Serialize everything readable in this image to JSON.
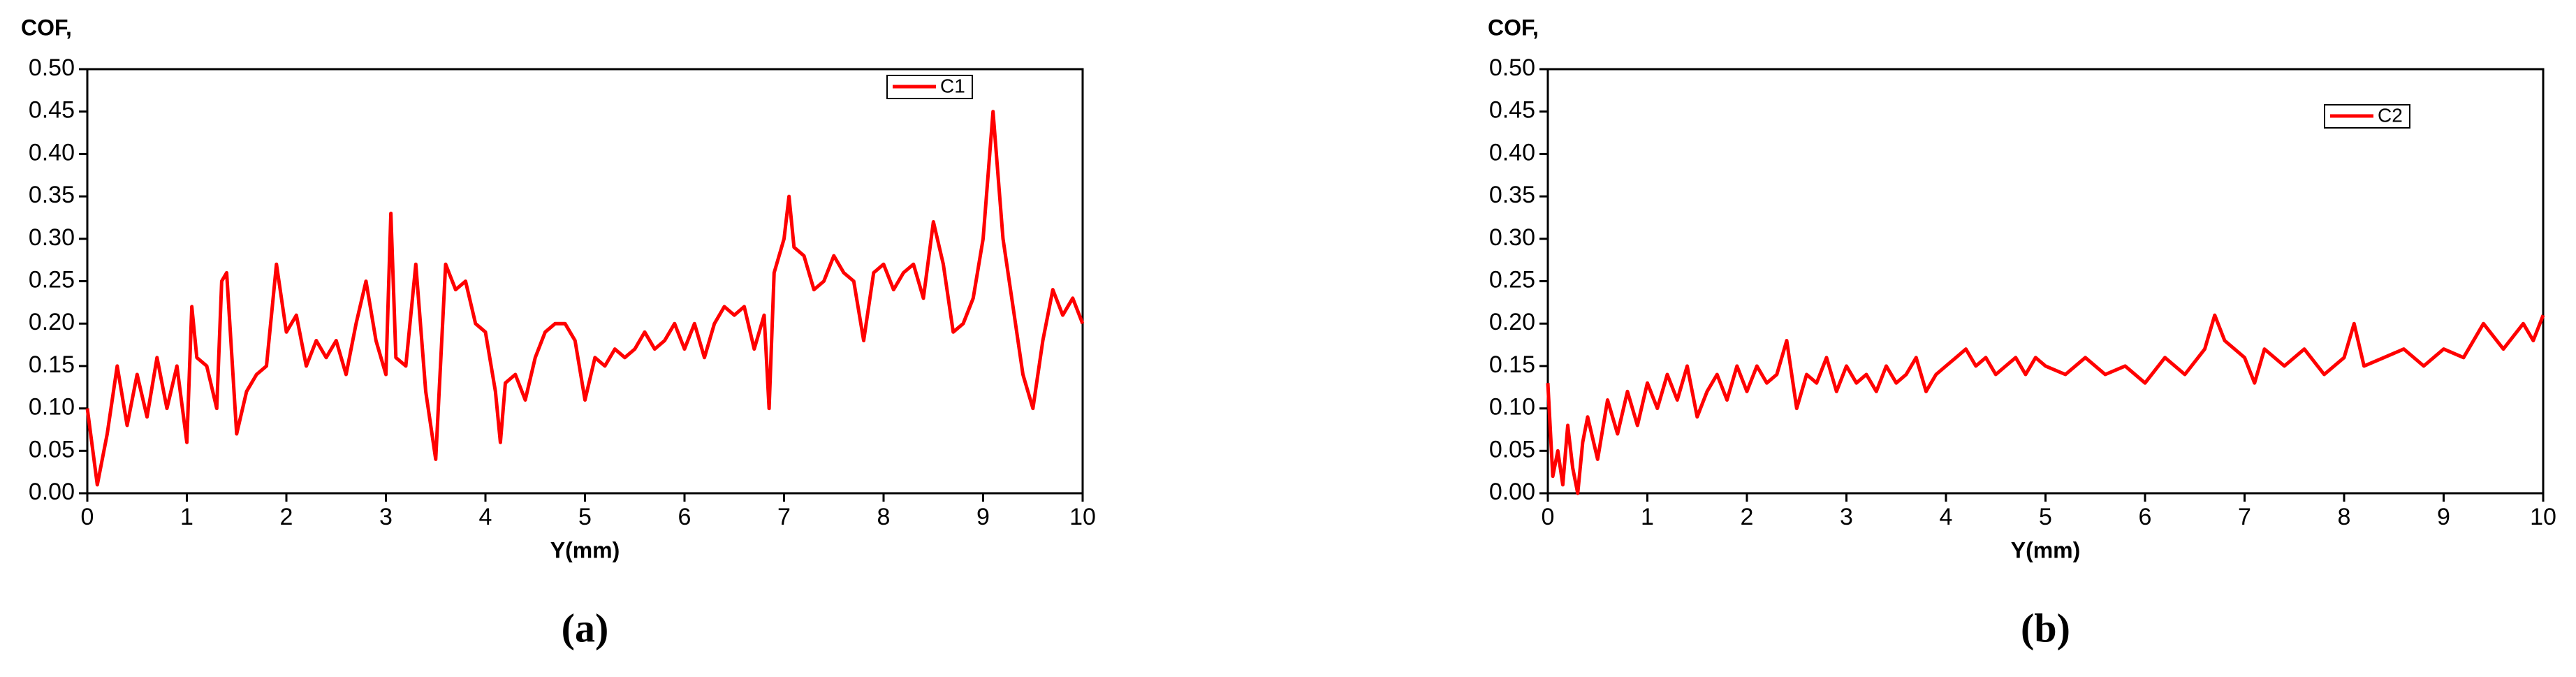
{
  "chart_data": [
    {
      "type": "line",
      "ylabel": "COF,",
      "xlabel": "Y(mm)",
      "caption": "(a)",
      "x": [
        0,
        0.1,
        0.2,
        0.3,
        0.4,
        0.5,
        0.6,
        0.7,
        0.8,
        0.9,
        1.0,
        1.05,
        1.1,
        1.2,
        1.3,
        1.35,
        1.4,
        1.5,
        1.6,
        1.7,
        1.8,
        1.9,
        2.0,
        2.1,
        2.2,
        2.3,
        2.4,
        2.5,
        2.6,
        2.7,
        2.8,
        2.9,
        3.0,
        3.05,
        3.1,
        3.2,
        3.3,
        3.4,
        3.5,
        3.6,
        3.7,
        3.8,
        3.9,
        4.0,
        4.1,
        4.15,
        4.2,
        4.3,
        4.4,
        4.5,
        4.6,
        4.7,
        4.8,
        4.9,
        5.0,
        5.1,
        5.2,
        5.3,
        5.4,
        5.5,
        5.6,
        5.7,
        5.8,
        5.9,
        6.0,
        6.1,
        6.2,
        6.3,
        6.4,
        6.5,
        6.6,
        6.7,
        6.8,
        6.85,
        6.9,
        7.0,
        7.05,
        7.1,
        7.2,
        7.3,
        7.4,
        7.5,
        7.6,
        7.7,
        7.8,
        7.9,
        8.0,
        8.1,
        8.2,
        8.3,
        8.4,
        8.5,
        8.6,
        8.7,
        8.8,
        8.9,
        9.0,
        9.1,
        9.2,
        9.3,
        9.4,
        9.5,
        9.6,
        9.7,
        9.8,
        9.9,
        10.0
      ],
      "series": [
        {
          "name": "C1",
          "color": "#ff0000",
          "values": [
            0.1,
            0.01,
            0.07,
            0.15,
            0.08,
            0.14,
            0.09,
            0.16,
            0.1,
            0.15,
            0.06,
            0.22,
            0.16,
            0.15,
            0.1,
            0.25,
            0.26,
            0.07,
            0.12,
            0.14,
            0.15,
            0.27,
            0.19,
            0.21,
            0.15,
            0.18,
            0.16,
            0.18,
            0.14,
            0.2,
            0.25,
            0.18,
            0.14,
            0.33,
            0.16,
            0.15,
            0.27,
            0.12,
            0.04,
            0.27,
            0.24,
            0.25,
            0.2,
            0.19,
            0.12,
            0.06,
            0.13,
            0.14,
            0.11,
            0.16,
            0.19,
            0.2,
            0.2,
            0.18,
            0.11,
            0.16,
            0.15,
            0.17,
            0.16,
            0.17,
            0.19,
            0.17,
            0.18,
            0.2,
            0.17,
            0.2,
            0.16,
            0.2,
            0.22,
            0.21,
            0.22,
            0.17,
            0.21,
            0.1,
            0.26,
            0.3,
            0.35,
            0.29,
            0.28,
            0.24,
            0.25,
            0.28,
            0.26,
            0.25,
            0.18,
            0.26,
            0.27,
            0.24,
            0.26,
            0.27,
            0.23,
            0.32,
            0.27,
            0.19,
            0.2,
            0.23,
            0.3,
            0.45,
            0.3,
            0.22,
            0.14,
            0.1,
            0.18,
            0.24,
            0.21,
            0.23,
            0.2
          ]
        }
      ],
      "xlim": [
        0,
        10
      ],
      "xticks": [
        0,
        1,
        2,
        3,
        4,
        5,
        6,
        7,
        8,
        9,
        10
      ],
      "ylim": [
        0,
        0.5
      ],
      "yticks": [
        {
          "value": 0,
          "label": "0.00"
        },
        {
          "value": 0.05,
          "label": "0.05"
        },
        {
          "value": 0.1,
          "label": "0.10"
        },
        {
          "value": 0.15,
          "label": "0.15"
        },
        {
          "value": 0.2,
          "label": "0.20"
        },
        {
          "value": 0.25,
          "label": "0.25"
        },
        {
          "value": 0.3,
          "label": "0.30"
        },
        {
          "value": 0.35,
          "label": "0.35"
        },
        {
          "value": 0.4,
          "label": "0.40"
        },
        {
          "value": 0.45,
          "label": "0.45"
        },
        {
          "value": 0.5,
          "label": "0.50"
        }
      ]
    },
    {
      "type": "line",
      "ylabel": "COF,",
      "xlabel": "Y(mm)",
      "caption": "(b)",
      "x": [
        0,
        0.05,
        0.1,
        0.15,
        0.2,
        0.25,
        0.3,
        0.35,
        0.4,
        0.5,
        0.6,
        0.7,
        0.8,
        0.9,
        1.0,
        1.1,
        1.2,
        1.3,
        1.4,
        1.5,
        1.6,
        1.7,
        1.8,
        1.9,
        2.0,
        2.1,
        2.2,
        2.3,
        2.4,
        2.5,
        2.6,
        2.7,
        2.8,
        2.9,
        3.0,
        3.1,
        3.2,
        3.3,
        3.4,
        3.5,
        3.6,
        3.7,
        3.8,
        3.9,
        4.0,
        4.1,
        4.2,
        4.3,
        4.4,
        4.5,
        4.6,
        4.7,
        4.8,
        4.9,
        5.0,
        5.2,
        5.4,
        5.6,
        5.8,
        6.0,
        6.2,
        6.4,
        6.6,
        6.7,
        6.8,
        7.0,
        7.1,
        7.2,
        7.4,
        7.6,
        7.8,
        8.0,
        8.1,
        8.2,
        8.4,
        8.6,
        8.8,
        9.0,
        9.2,
        9.4,
        9.6,
        9.8,
        9.9,
        10.0
      ],
      "series": [
        {
          "name": "C2",
          "color": "#ff0000",
          "values": [
            0.13,
            0.02,
            0.05,
            0.01,
            0.08,
            0.03,
            0.0,
            0.06,
            0.09,
            0.04,
            0.11,
            0.07,
            0.12,
            0.08,
            0.13,
            0.1,
            0.14,
            0.11,
            0.15,
            0.09,
            0.12,
            0.14,
            0.11,
            0.15,
            0.12,
            0.15,
            0.13,
            0.14,
            0.18,
            0.1,
            0.14,
            0.13,
            0.16,
            0.12,
            0.15,
            0.13,
            0.14,
            0.12,
            0.15,
            0.13,
            0.14,
            0.16,
            0.12,
            0.14,
            0.15,
            0.16,
            0.17,
            0.15,
            0.16,
            0.14,
            0.15,
            0.16,
            0.14,
            0.16,
            0.15,
            0.14,
            0.16,
            0.14,
            0.15,
            0.13,
            0.16,
            0.14,
            0.17,
            0.21,
            0.18,
            0.16,
            0.13,
            0.17,
            0.15,
            0.17,
            0.14,
            0.16,
            0.2,
            0.15,
            0.16,
            0.17,
            0.15,
            0.17,
            0.16,
            0.2,
            0.17,
            0.2,
            0.18,
            0.21
          ]
        }
      ],
      "xlim": [
        0,
        10
      ],
      "xticks": [
        0,
        1,
        2,
        3,
        4,
        5,
        6,
        7,
        8,
        9,
        10
      ],
      "ylim": [
        0,
        0.5
      ],
      "yticks": [
        {
          "value": 0,
          "label": "0.00"
        },
        {
          "value": 0.05,
          "label": "0.05"
        },
        {
          "value": 0.1,
          "label": "0.10"
        },
        {
          "value": 0.15,
          "label": "0.15"
        },
        {
          "value": 0.2,
          "label": "0.20"
        },
        {
          "value": 0.25,
          "label": "0.25"
        },
        {
          "value": 0.3,
          "label": "0.30"
        },
        {
          "value": 0.35,
          "label": "0.35"
        },
        {
          "value": 0.4,
          "label": "0.40"
        },
        {
          "value": 0.45,
          "label": "0.45"
        },
        {
          "value": 0.5,
          "label": "0.50"
        }
      ]
    }
  ]
}
